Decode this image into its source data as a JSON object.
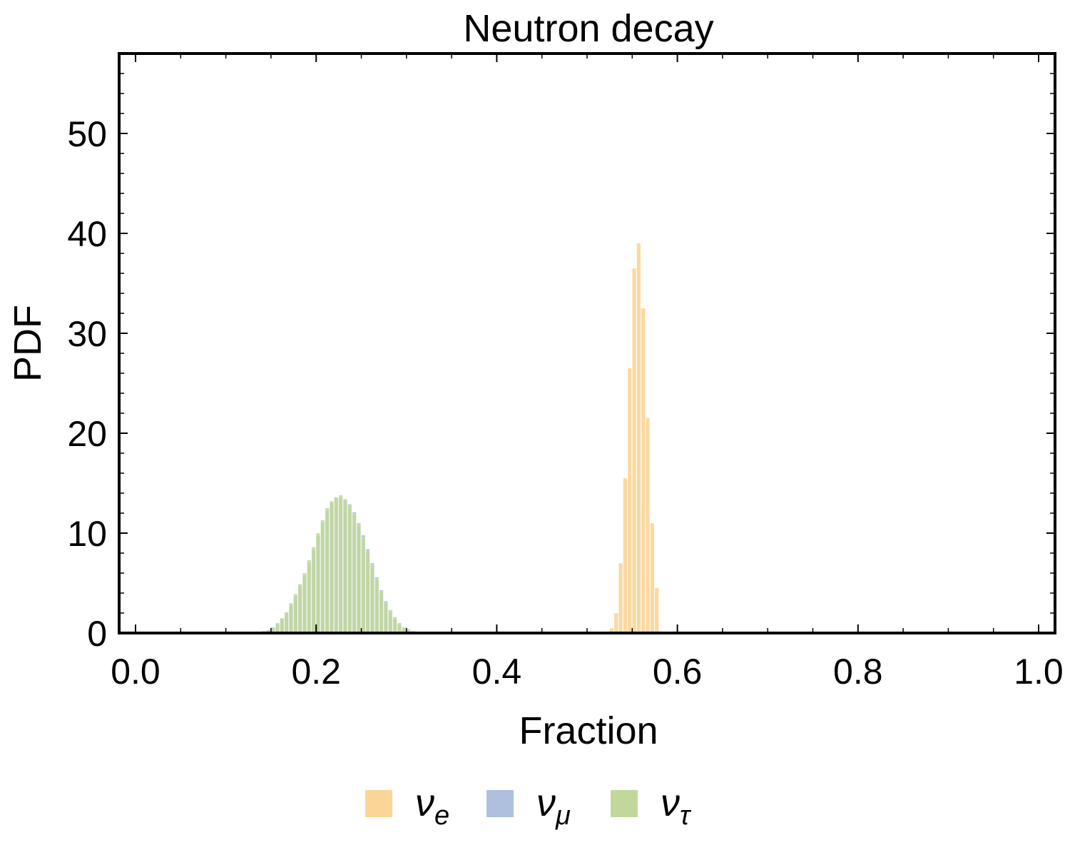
{
  "chart_data": {
    "type": "bar",
    "title": "Neutron decay",
    "xlabel": "Fraction",
    "ylabel": "PDF",
    "xlim": [
      0,
      1
    ],
    "ylim": [
      0,
      58
    ],
    "x_ticks": [
      "0.0",
      "0.2",
      "0.4",
      "0.6",
      "0.8",
      "1.0"
    ],
    "x_tick_values": [
      0,
      0.2,
      0.4,
      0.6,
      0.8,
      1.0
    ],
    "y_ticks": [
      "0",
      "10",
      "20",
      "30",
      "40",
      "50"
    ],
    "y_tick_values": [
      0,
      10,
      20,
      30,
      40,
      50
    ],
    "grid": false,
    "legend_position": "bottom",
    "bin_width": 0.005,
    "series": [
      {
        "name": "νe",
        "symbol": "ν",
        "subscript": "e",
        "color": "#FAD597",
        "x": [
          0.525,
          0.53,
          0.535,
          0.54,
          0.545,
          0.55,
          0.555,
          0.56,
          0.565,
          0.57,
          0.575
        ],
        "values": [
          0.5,
          2.0,
          7.0,
          15.5,
          26.5,
          36.5,
          39.0,
          32.5,
          21.5,
          11.0,
          4.5
        ]
      },
      {
        "name": "νμ",
        "symbol": "ν",
        "subscript": "μ",
        "color": "#AFC0DE",
        "x": [
          0.14,
          0.145,
          0.15,
          0.155,
          0.16,
          0.165,
          0.17,
          0.175,
          0.18,
          0.185,
          0.19,
          0.195,
          0.2,
          0.205,
          0.21,
          0.215,
          0.22,
          0.225,
          0.23,
          0.235,
          0.24,
          0.245,
          0.25,
          0.255,
          0.26,
          0.265,
          0.27,
          0.275,
          0.28,
          0.285,
          0.29,
          0.295,
          0.3,
          0.305,
          0.31
        ],
        "values": [
          0.2,
          0.3,
          0.5,
          0.9,
          1.4,
          2.0,
          2.8,
          3.7,
          4.7,
          5.7,
          7.0,
          8.3,
          9.7,
          11.0,
          12.2,
          13.0,
          13.5,
          13.6,
          13.4,
          12.9,
          12.1,
          11.0,
          9.8,
          8.4,
          7.0,
          5.6,
          4.3,
          3.2,
          2.3,
          1.6,
          1.0,
          0.6,
          0.4,
          0.2,
          0.1
        ]
      },
      {
        "name": "ντ",
        "symbol": "ν",
        "subscript": "τ",
        "color": "#C2D89B",
        "x": [
          0.14,
          0.145,
          0.15,
          0.155,
          0.16,
          0.165,
          0.17,
          0.175,
          0.18,
          0.185,
          0.19,
          0.195,
          0.2,
          0.205,
          0.21,
          0.215,
          0.22,
          0.225,
          0.23,
          0.235,
          0.24,
          0.245,
          0.25,
          0.255,
          0.26,
          0.265,
          0.27,
          0.275,
          0.28,
          0.285,
          0.29,
          0.295,
          0.3,
          0.305,
          0.31
        ],
        "values": [
          0.2,
          0.3,
          0.6,
          1.0,
          1.5,
          2.1,
          3.0,
          3.9,
          4.9,
          6.0,
          7.3,
          8.6,
          10.0,
          11.3,
          12.5,
          13.2,
          13.6,
          13.8,
          13.3,
          12.8,
          11.9,
          10.8,
          9.5,
          8.1,
          6.8,
          5.4,
          4.1,
          3.0,
          2.2,
          1.5,
          0.9,
          0.5,
          0.3,
          0.2,
          0.1
        ]
      }
    ]
  }
}
